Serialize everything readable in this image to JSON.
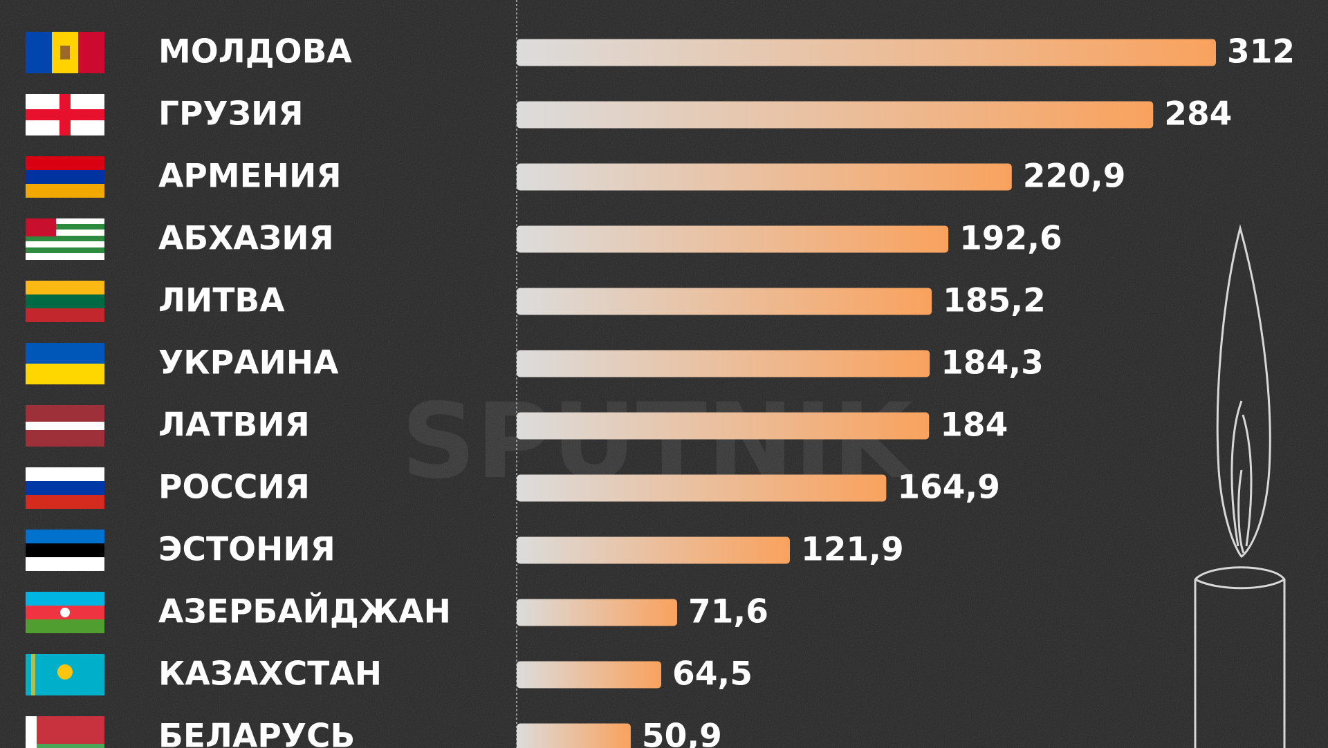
{
  "chart_data": {
    "type": "bar",
    "orientation": "horizontal",
    "categories": [
      "МОЛДОВА",
      "ГРУЗИЯ",
      "АРМЕНИЯ",
      "АБХАЗИЯ",
      "ЛИТВА",
      "УКРАИНА",
      "ЛАТВИЯ",
      "РОССИЯ",
      "ЭСТОНИЯ",
      "АЗЕРБАЙДЖАН",
      "КАЗАХСТАН",
      "БЕЛАРУСЬ"
    ],
    "values": [
      312,
      284,
      220.9,
      192.6,
      185.2,
      184.3,
      184,
      164.9,
      121.9,
      71.6,
      64.5,
      50.9
    ],
    "value_labels": [
      "312",
      "284",
      "220,9",
      "192,6",
      "185,2",
      "184,3",
      "184",
      "164,9",
      "121,9",
      "71,6",
      "64,5",
      "50,9"
    ],
    "color": "#f9a25e",
    "watermark": "SPUTNIK"
  }
}
